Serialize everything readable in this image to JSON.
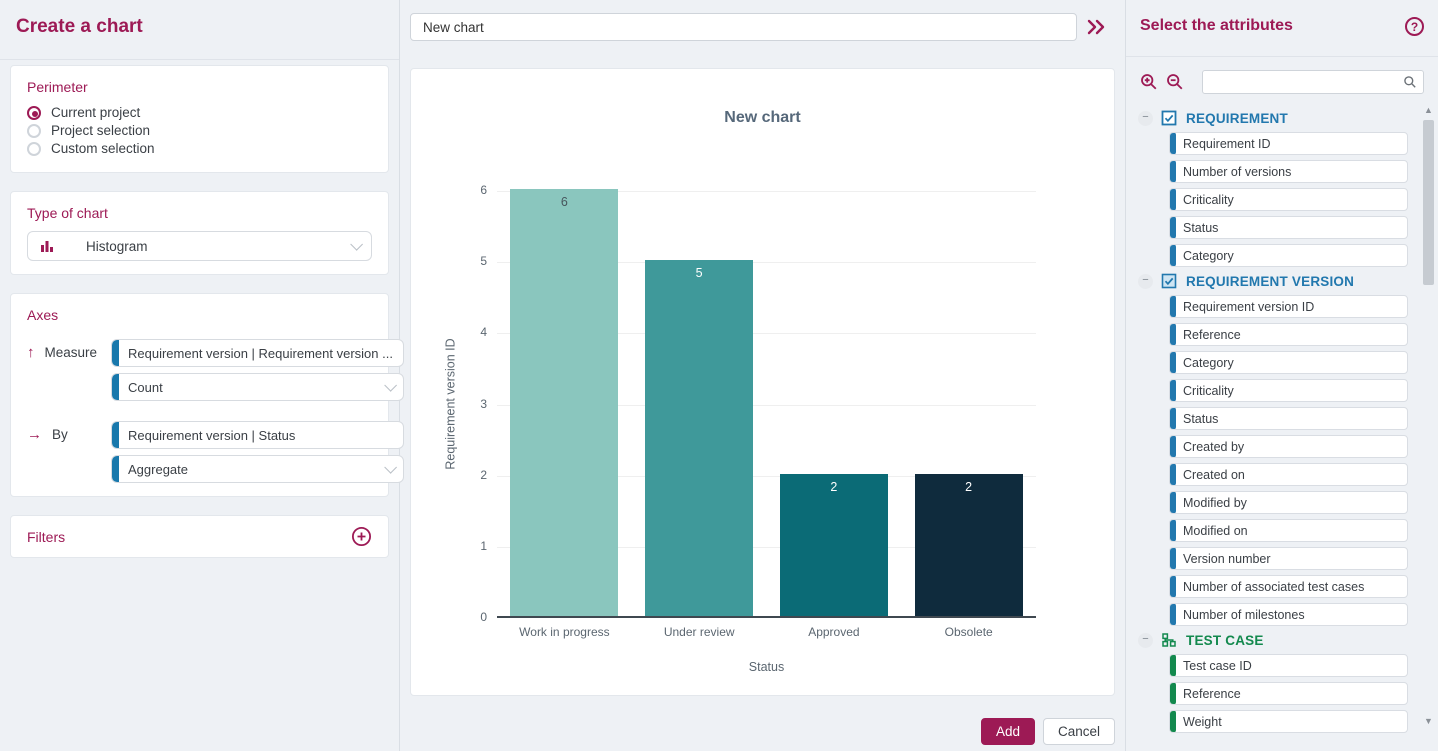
{
  "left_panel": {
    "title": "Create a chart",
    "perimeter": {
      "title": "Perimeter",
      "options": [
        {
          "label": "Current project",
          "selected": true
        },
        {
          "label": "Project selection",
          "selected": false
        },
        {
          "label": "Custom selection",
          "selected": false
        }
      ]
    },
    "type_of_chart": {
      "title": "Type of chart",
      "selected": "Histogram"
    },
    "axes": {
      "title": "Axes",
      "measure_label": "Measure",
      "measure_attribute": "Requirement version | Requirement version ...",
      "measure_operation": "Count",
      "by_label": "By",
      "by_attribute": "Requirement version | Status",
      "by_operation": "Aggregate"
    },
    "filters": {
      "title": "Filters"
    }
  },
  "main": {
    "name_input_value": "New chart",
    "add_label": "Add",
    "cancel_label": "Cancel"
  },
  "chart_data": {
    "type": "bar",
    "title": "New chart",
    "categories": [
      "Work in progress",
      "Under review",
      "Approved",
      "Obsolete"
    ],
    "values": [
      6,
      5,
      2,
      2
    ],
    "bar_colors": [
      "#8ac6be",
      "#3f999a",
      "#0b6b76",
      "#0f2b3d"
    ],
    "value_label_colors": [
      "#47555c",
      "#ffffff",
      "#ffffff",
      "#ffffff"
    ],
    "xlabel": "Status",
    "ylabel": "Requirement version ID",
    "ylim": [
      0,
      6
    ],
    "yticks": [
      0,
      1,
      2,
      3,
      4,
      5,
      6
    ],
    "grid": true,
    "legend": "none"
  },
  "right_panel": {
    "title": "Select the attributes",
    "sections": [
      {
        "name": "REQUIREMENT",
        "color": "#2278ae",
        "icon": "checkbox-checked-icon",
        "items": [
          "Requirement ID",
          "Number of versions",
          "Criticality",
          "Status",
          "Category"
        ]
      },
      {
        "name": "REQUIREMENT VERSION",
        "color": "#2278ae",
        "icon": "checkbox-filled-icon",
        "items": [
          "Requirement version ID",
          "Reference",
          "Category",
          "Criticality",
          "Status",
          "Created by",
          "Created on",
          "Modified by",
          "Modified on",
          "Version number",
          "Number of associated test cases",
          "Number of milestones"
        ]
      },
      {
        "name": "TEST CASE",
        "color": "#13894e",
        "icon": "hierarchy-icon",
        "items": [
          "Test case ID",
          "Reference",
          "Weight"
        ]
      }
    ]
  },
  "icons": {
    "expand": "double-chevron-right-icon",
    "help": "question-circle-icon",
    "zoom_in": "zoom-in-icon",
    "zoom_out": "zoom-out-icon",
    "search": "search-icon",
    "histogram": "bar-chart-icon",
    "add_filter": "plus-circle-icon"
  },
  "colors": {
    "accent_magenta": "#9d1a55",
    "accent_blue": "#1878ac",
    "accent_green": "#13894e",
    "background": "#eef1f5"
  }
}
